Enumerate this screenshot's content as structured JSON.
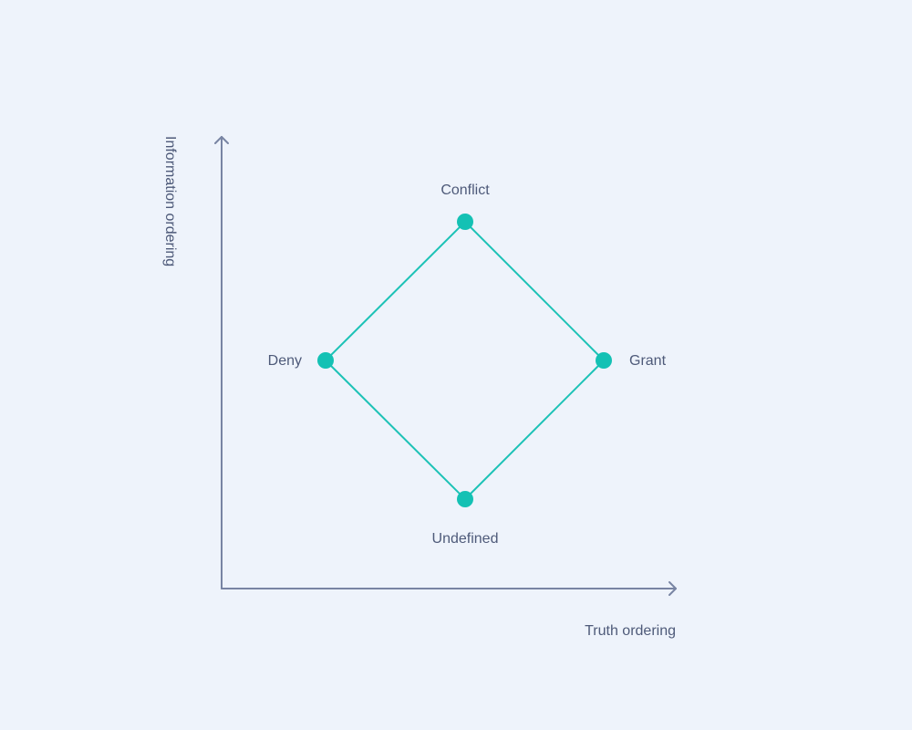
{
  "diagram": {
    "axes": {
      "x_label": "Truth ordering",
      "y_label": "Information ordering"
    },
    "nodes": [
      {
        "id": "conflict",
        "label": "Conflict"
      },
      {
        "id": "deny",
        "label": "Deny"
      },
      {
        "id": "grant",
        "label": "Grant"
      },
      {
        "id": "undefined",
        "label": "Undefined"
      }
    ],
    "edges": [
      {
        "from": "conflict",
        "to": "deny"
      },
      {
        "from": "conflict",
        "to": "grant"
      },
      {
        "from": "deny",
        "to": "undefined"
      },
      {
        "from": "grant",
        "to": "undefined"
      }
    ],
    "colors": {
      "background": "#eef3fb",
      "axis": "#7884a3",
      "edge": "#1cc2b6",
      "node": "#14c1b4",
      "text": "#4e5a79"
    }
  }
}
